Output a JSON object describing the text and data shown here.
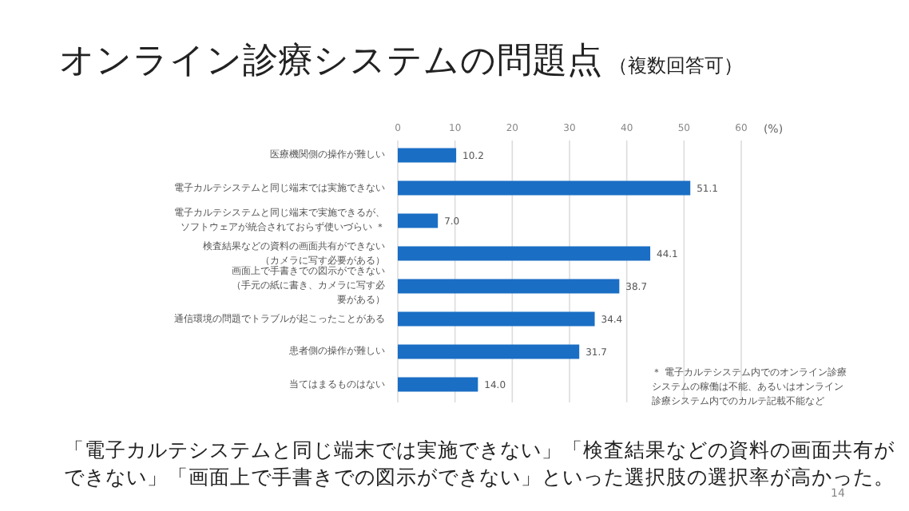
{
  "chart_data": {
    "type": "bar",
    "orientation": "horizontal",
    "title": "オンライン診療システムの問題点",
    "subtitle": "（複数回答可）",
    "categories": [
      "医療機関側の操作が難しい",
      "電子カルテシステムと同じ端末では実施できない",
      "電子カルテシステムと同じ端末で実施できるが、ソフトウェアが統合されておらず使いづらい ＊",
      "検査結果などの資料の画面共有ができない（カメラに写す必要がある）",
      "画面上で手書きでの図示ができない（手元の紙に書き、カメラに写す必要がある）",
      "通信環境の問題でトラブルが起こったことがある",
      "患者側の操作が難しい",
      "当てはまるものはない"
    ],
    "values": [
      10.2,
      51.1,
      7.0,
      44.1,
      38.7,
      34.4,
      31.7,
      14.0
    ],
    "value_labels": [
      "10.2",
      "51.1",
      "7.0",
      "44.1",
      "38.7",
      "34.4",
      "31.7",
      "14.0"
    ],
    "color": "#1a6ec4",
    "xlim": [
      0,
      60
    ],
    "xticks": [
      0,
      10,
      20,
      30,
      40,
      50,
      60
    ],
    "xlabel": "(%)",
    "grid": "x",
    "annotations": [
      "＊ 電子カルテシステム内でのオンライン診療システムの稼働は不能、あるいはオンライン診療システム内でのカルテ記載不能など",
      "「電子カルテシステムと同じ端末では実施できない」「検査結果などの資料の画面共有ができない」「画面上で手書きでの図示ができない」といった選択肢の選択率が高かった。",
      "14"
    ]
  }
}
